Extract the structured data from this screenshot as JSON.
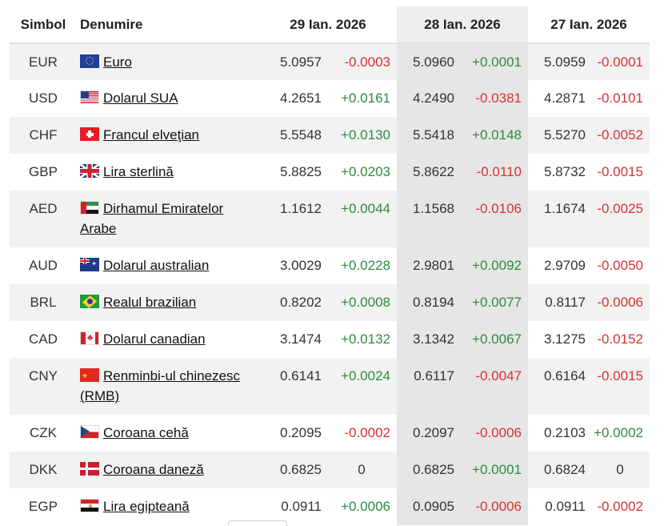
{
  "header": {
    "symbol": "Simbol",
    "name": "Denumire",
    "dates": [
      "29 Ian. 2026",
      "28 Ian. 2026",
      "27 Ian. 2026"
    ]
  },
  "rows": [
    {
      "symbol": "EUR",
      "flag": "eu-flag-icon",
      "name": "Euro",
      "name2": "",
      "d1_val": "5.0957",
      "d1_chg": "-0.0003",
      "d2_val": "5.0960",
      "d2_chg": "+0.0001",
      "d3_val": "5.0959",
      "d3_chg": "-0.0001"
    },
    {
      "symbol": "USD",
      "flag": "us-flag-icon",
      "name": "Dolarul SUA",
      "name2": "",
      "d1_val": "4.2651",
      "d1_chg": "+0.0161",
      "d2_val": "4.2490",
      "d2_chg": "-0.0381",
      "d3_val": "4.2871",
      "d3_chg": "-0.0101"
    },
    {
      "symbol": "CHF",
      "flag": "ch-flag-icon",
      "name": "Francul elveţian",
      "name2": "",
      "d1_val": "5.5548",
      "d1_chg": "+0.0130",
      "d2_val": "5.5418",
      "d2_chg": "+0.0148",
      "d3_val": "5.5270",
      "d3_chg": "-0.0052"
    },
    {
      "symbol": "GBP",
      "flag": "gb-flag-icon",
      "name": "Lira sterlină",
      "name2": "",
      "d1_val": "5.8825",
      "d1_chg": "+0.0203",
      "d2_val": "5.8622",
      "d2_chg": "-0.0110",
      "d3_val": "5.8732",
      "d3_chg": "-0.0015"
    },
    {
      "symbol": "AED",
      "flag": "ae-flag-icon",
      "name": "Dirhamul Emiratelor",
      "name2": "Arabe",
      "d1_val": "1.1612",
      "d1_chg": "+0.0044",
      "d2_val": "1.1568",
      "d2_chg": "-0.0106",
      "d3_val": "1.1674",
      "d3_chg": "-0.0025"
    },
    {
      "symbol": "AUD",
      "flag": "au-flag-icon",
      "name": "Dolarul australian",
      "name2": "",
      "d1_val": "3.0029",
      "d1_chg": "+0.0228",
      "d2_val": "2.9801",
      "d2_chg": "+0.0092",
      "d3_val": "2.9709",
      "d3_chg": "-0.0050"
    },
    {
      "symbol": "BRL",
      "flag": "br-flag-icon",
      "name": "Realul brazilian",
      "name2": "",
      "d1_val": "0.8202",
      "d1_chg": "+0.0008",
      "d2_val": "0.8194",
      "d2_chg": "+0.0077",
      "d3_val": "0.8117",
      "d3_chg": "-0.0006"
    },
    {
      "symbol": "CAD",
      "flag": "ca-flag-icon",
      "name": "Dolarul canadian",
      "name2": "",
      "d1_val": "3.1474",
      "d1_chg": "+0.0132",
      "d2_val": "3.1342",
      "d2_chg": "+0.0067",
      "d3_val": "3.1275",
      "d3_chg": "-0.0152"
    },
    {
      "symbol": "CNY",
      "flag": "cn-flag-icon",
      "name": "Renminbi-ul chinezesc",
      "name2": "(RMB)",
      "d1_val": "0.6141",
      "d1_chg": "+0.0024",
      "d2_val": "0.6117",
      "d2_chg": "-0.0047",
      "d3_val": "0.6164",
      "d3_chg": "-0.0015"
    },
    {
      "symbol": "CZK",
      "flag": "cz-flag-icon",
      "name": "Coroana cehă",
      "name2": "",
      "d1_val": "0.2095",
      "d1_chg": "-0.0002",
      "d2_val": "0.2097",
      "d2_chg": "-0.0006",
      "d3_val": "0.2103",
      "d3_chg": "+0.0002"
    },
    {
      "symbol": "DKK",
      "flag": "dk-flag-icon",
      "name": "Coroana daneză",
      "name2": "",
      "d1_val": "0.6825",
      "d1_chg": "0",
      "d2_val": "0.6825",
      "d2_chg": "+0.0001",
      "d3_val": "0.6824",
      "d3_chg": "0"
    },
    {
      "symbol": "EGP",
      "flag": "eg-flag-icon",
      "name": "Lira egipteană",
      "name2": "",
      "d1_val": "0.0911",
      "d1_chg": "+0.0006",
      "d2_val": "0.0905",
      "d2_chg": "-0.0006",
      "d3_val": "0.0911",
      "d3_chg": "-0.0002"
    }
  ],
  "colors": {
    "positive": "#2e8b3e",
    "negative": "#d63232",
    "stripe": "#f2f2f2",
    "selected_column": "#e6e6e6"
  }
}
